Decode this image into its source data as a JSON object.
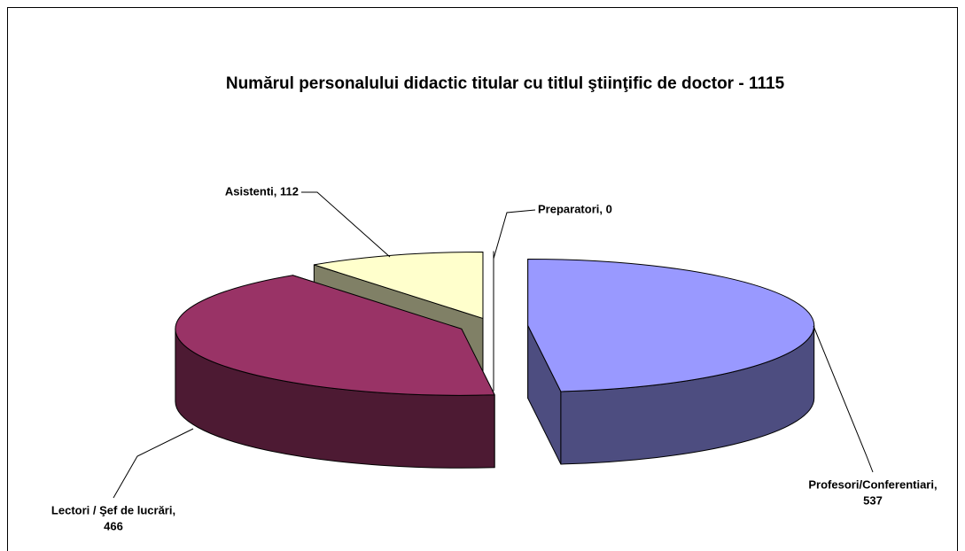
{
  "chart_data": {
    "type": "pie3d",
    "title": "Numărul personalului didactic titular cu titlul ştiinţific de doctor - 1115",
    "values": [
      537,
      466,
      112,
      0
    ],
    "value_labels": [
      [
        "Profesori/Conferentiari,",
        "537"
      ],
      [
        "Lectori / Şef de lucrări,",
        "466"
      ],
      [
        "Asistenti, 112"
      ],
      [
        "Preparatori, 0"
      ]
    ],
    "colors": [
      "#9999ff",
      "#993366",
      "#ffffcc",
      "#ccffff"
    ]
  }
}
